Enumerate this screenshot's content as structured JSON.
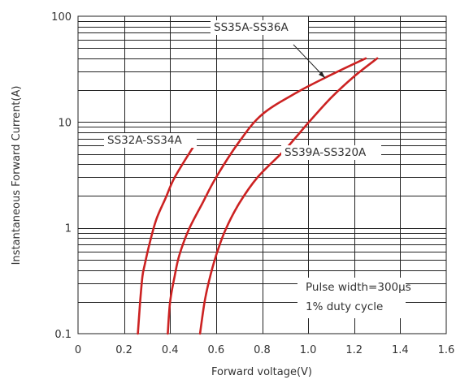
{
  "chart_data": {
    "type": "line",
    "title": "",
    "xlabel": "Forward voltage(V)",
    "ylabel": "Instantaneous Forward Current(A)",
    "xlim": [
      0,
      1.6
    ],
    "ylim": [
      0.1,
      100
    ],
    "yscale": "log",
    "grid": true,
    "x_ticks": [
      "0",
      "0.2",
      "0.4",
      "0.6",
      "0.8",
      "1.0",
      "1.2",
      "1.4",
      "1.6"
    ],
    "y_ticks": [
      "0.1",
      "1",
      "10",
      "100"
    ],
    "curve_color": "#cc2222",
    "series": [
      {
        "name": "SS32A-SS34A",
        "points": [
          [
            0.26,
            0.1
          ],
          [
            0.27,
            0.2
          ],
          [
            0.28,
            0.35
          ],
          [
            0.29,
            0.45
          ],
          [
            0.31,
            0.7
          ],
          [
            0.34,
            1.2
          ],
          [
            0.38,
            1.9
          ],
          [
            0.42,
            3.0
          ],
          [
            0.5,
            5.8
          ]
        ]
      },
      {
        "name": "SS35A-SS36A",
        "points": [
          [
            0.39,
            0.1
          ],
          [
            0.4,
            0.2
          ],
          [
            0.42,
            0.35
          ],
          [
            0.44,
            0.55
          ],
          [
            0.48,
            0.95
          ],
          [
            0.54,
            1.7
          ],
          [
            0.6,
            3.0
          ],
          [
            0.7,
            6.5
          ],
          [
            0.8,
            11.8
          ],
          [
            0.95,
            19
          ],
          [
            1.1,
            28
          ],
          [
            1.25,
            40
          ]
        ]
      },
      {
        "name": "SS39A-SS320A",
        "points": [
          [
            0.53,
            0.1
          ],
          [
            0.55,
            0.2
          ],
          [
            0.57,
            0.32
          ],
          [
            0.6,
            0.55
          ],
          [
            0.64,
            0.95
          ],
          [
            0.7,
            1.7
          ],
          [
            0.78,
            3.0
          ],
          [
            0.9,
            5.5
          ],
          [
            1.0,
            9.8
          ],
          [
            1.1,
            17
          ],
          [
            1.2,
            27
          ],
          [
            1.3,
            40
          ]
        ]
      }
    ],
    "annotations": [
      "Pulse width=300μs",
      "1% duty cycle"
    ]
  }
}
